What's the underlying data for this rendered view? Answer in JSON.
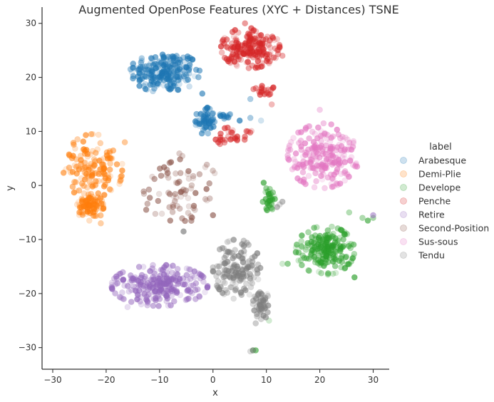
{
  "chart_data": {
    "type": "scatter",
    "title": "Augmented OpenPose Features (XYC + Distances) TSNE",
    "xlabel": "x",
    "ylabel": "y",
    "xlim": [
      -32,
      33
    ],
    "ylim": [
      -34,
      33
    ],
    "xticks": [
      -30,
      -20,
      -10,
      0,
      10,
      20,
      30
    ],
    "yticks": [
      -30,
      -20,
      -10,
      0,
      10,
      20,
      30
    ],
    "grid": false,
    "legend": {
      "title": "label",
      "placement": "right"
    },
    "series": [
      {
        "name": "Arabesque",
        "color": "#1f77b4",
        "clusters": [
          {
            "cx": -9,
            "cy": 21,
            "rx": 6.5,
            "ry": 3.8,
            "n": 220
          },
          {
            "cx": -1.5,
            "cy": 12,
            "rx": 1.8,
            "ry": 2.5,
            "n": 60
          },
          {
            "cx": 2.5,
            "cy": 13,
            "rx": 1.2,
            "ry": 0.8,
            "n": 12
          }
        ],
        "points": [
          [
            7,
            16
          ],
          [
            9,
            12
          ],
          [
            7,
            12.5
          ],
          [
            -2,
            17
          ],
          [
            5,
            12
          ]
        ]
      },
      {
        "name": "Demi-Plie",
        "color": "#ff7f0e",
        "clusters": [
          {
            "cx": -22.5,
            "cy": 3,
            "rx": 5.5,
            "ry": 6.5,
            "n": 150
          },
          {
            "cx": -23,
            "cy": -4,
            "rx": 2.5,
            "ry": 2.5,
            "n": 80
          }
        ],
        "points": [
          [
            -16.5,
            8
          ],
          [
            -17,
            4
          ],
          [
            -21,
            -7
          ]
        ]
      },
      {
        "name": "Develope",
        "color": "#2ca02c",
        "clusters": [
          {
            "cx": 21,
            "cy": -12,
            "rx": 5.5,
            "ry": 4.5,
            "n": 200
          },
          {
            "cx": 10.5,
            "cy": -2.5,
            "rx": 1.2,
            "ry": 2.2,
            "n": 30
          }
        ],
        "points": [
          [
            26.5,
            -17
          ],
          [
            28,
            -6
          ],
          [
            29,
            -6.5
          ],
          [
            30,
            -6
          ],
          [
            25.5,
            -5
          ],
          [
            10.5,
            -25
          ],
          [
            8,
            -30.5
          ],
          [
            7.5,
            -30.5
          ],
          [
            9.5,
            0.5
          ],
          [
            14,
            -14.5
          ],
          [
            13,
            -14.5
          ]
        ]
      },
      {
        "name": "Penche",
        "color": "#d62728",
        "clusters": [
          {
            "cx": 7,
            "cy": 25.5,
            "rx": 5.5,
            "ry": 3.8,
            "n": 200
          },
          {
            "cx": 4,
            "cy": 9,
            "rx": 4,
            "ry": 1.8,
            "n": 30
          },
          {
            "cx": 10,
            "cy": 17.5,
            "rx": 2.5,
            "ry": 1.2,
            "n": 20
          }
        ],
        "points": [
          [
            1,
            8
          ],
          [
            0.5,
            8.5
          ],
          [
            11,
            15
          ],
          [
            13,
            24
          ],
          [
            6,
            30
          ]
        ]
      },
      {
        "name": "Retire",
        "color": "#9467bd",
        "clusters": [
          {
            "cx": -10,
            "cy": -18.5,
            "rx": 9,
            "ry": 3.8,
            "n": 250
          }
        ],
        "points": [
          [
            30,
            -5.5
          ],
          [
            -16,
            -22.5
          ]
        ]
      },
      {
        "name": "Second-Position",
        "color": "#8c564b",
        "clusters": [
          {
            "cx": -6,
            "cy": -0.5,
            "rx": 7,
            "ry": 6.5,
            "n": 75
          }
        ],
        "points": [
          [
            -8,
            -6.5
          ],
          [
            0,
            -5.5
          ],
          [
            -12.5,
            -4.5
          ]
        ]
      },
      {
        "name": "Sus-sous",
        "color": "#e377c2",
        "clusters": [
          {
            "cx": 20.5,
            "cy": 5.5,
            "rx": 6.5,
            "ry": 6,
            "n": 220
          }
        ],
        "points": [
          [
            20,
            14
          ],
          [
            27,
            3.5
          ]
        ]
      },
      {
        "name": "Tendu",
        "color": "#7f7f7f",
        "clusters": [
          {
            "cx": 4.5,
            "cy": -15.5,
            "rx": 4.5,
            "ry": 5.5,
            "n": 150
          },
          {
            "cx": 9,
            "cy": -22,
            "rx": 1.5,
            "ry": 3,
            "n": 50
          }
        ],
        "points": [
          [
            8,
            -25.5
          ],
          [
            7.5,
            -30.5
          ],
          [
            7,
            -30.7
          ],
          [
            12,
            -4
          ],
          [
            13,
            -3
          ],
          [
            -5.5,
            -8.5
          ],
          [
            12.5,
            -3.5
          ]
        ]
      }
    ]
  }
}
